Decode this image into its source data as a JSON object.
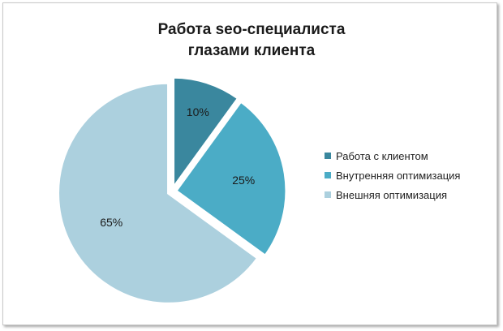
{
  "chart_data": {
    "type": "pie",
    "title": "Работа seo-специалиста глазами клиента",
    "title_lines": [
      "Работа seo-специалиста",
      "глазами клиента"
    ],
    "categories": [
      "Работа с клиентом",
      "Внутренняя оптимизация",
      "Внешняя оптимизация"
    ],
    "values": [
      10,
      25,
      65
    ],
    "data_labels": [
      "10%",
      "25%",
      "65%"
    ],
    "colors": [
      "#3a879e",
      "#4bacc6",
      "#acd0de"
    ],
    "legend_position": "right",
    "exploded": true
  }
}
